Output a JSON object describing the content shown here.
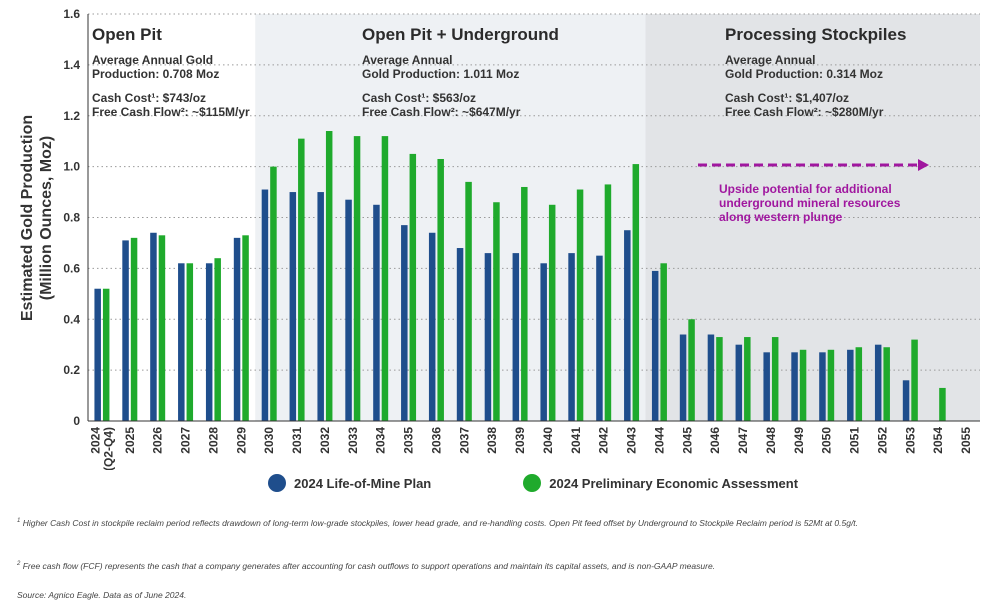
{
  "chart_data": {
    "type": "bar",
    "ylabel_line1": "Estimated Gold Production",
    "ylabel_line2": "(Million Ounces, Moz)",
    "ylim": [
      0,
      1.6
    ],
    "yticks": [
      "0",
      "0.2",
      "0.4",
      "0.6",
      "0.8",
      "1.0",
      "1.2",
      "1.4",
      "1.6"
    ],
    "grid": true,
    "legend_position": "bottom",
    "categories": [
      "2024\n(Q2-Q4)",
      "2025",
      "2026",
      "2027",
      "2028",
      "2029",
      "2030",
      "2031",
      "2032",
      "2033",
      "2034",
      "2035",
      "2036",
      "2037",
      "2038",
      "2039",
      "2040",
      "2041",
      "2042",
      "2043",
      "2044",
      "2045",
      "2046",
      "2047",
      "2048",
      "2049",
      "2050",
      "2051",
      "2052",
      "2053",
      "2054",
      "2055"
    ],
    "series": [
      {
        "name": "2024 Life-of-Mine Plan",
        "color": "#1f4e8c",
        "values": [
          0.52,
          0.71,
          0.74,
          0.62,
          0.62,
          0.72,
          0.91,
          0.9,
          0.9,
          0.87,
          0.85,
          0.77,
          0.74,
          0.68,
          0.66,
          0.66,
          0.62,
          0.66,
          0.65,
          0.75,
          0.59,
          0.34,
          0.34,
          0.3,
          0.27,
          0.27,
          0.27,
          0.28,
          0.3,
          0.16,
          null,
          null
        ]
      },
      {
        "name": "2024 Preliminary Economic Assessment",
        "color": "#1faa2c",
        "values": [
          0.52,
          0.72,
          0.73,
          0.62,
          0.64,
          0.73,
          1.0,
          1.11,
          1.14,
          1.12,
          1.12,
          1.05,
          1.03,
          0.94,
          0.86,
          0.92,
          0.85,
          0.91,
          0.93,
          1.01,
          0.62,
          0.4,
          0.33,
          0.33,
          0.33,
          0.28,
          0.28,
          0.29,
          0.29,
          0.32,
          0.13,
          null
        ]
      }
    ],
    "phases": [
      {
        "title": "Open Pit",
        "lines": [
          "Average Annual Gold",
          "Production: 0.708 Moz",
          "",
          "Cash Cost¹: $743/oz",
          "Free Cash Flow²:  ~$115M/yr"
        ],
        "shade": "#ffffff"
      },
      {
        "title": "Open Pit + Underground",
        "lines": [
          "Average Annual",
          "Gold Production: 1.011 Moz",
          "",
          "Cash Cost¹: $563/oz",
          "Free Cash Flow²: ~$647M/yr"
        ],
        "shade": "#eef1f4"
      },
      {
        "title": "Processing Stockpiles",
        "lines": [
          "Average Annual",
          "Gold Production: 0.314 Moz",
          "",
          "Cash Cost¹: $1,407/oz",
          "Free Cash Flow²: ~$280M/yr"
        ],
        "shade": "#e2e4e7"
      }
    ],
    "annotation": {
      "lines": [
        "Upside potential for additional",
        "underground  mineral resources",
        "along western plunge"
      ],
      "color": "#a0179f"
    }
  },
  "legend": {
    "lom": "2024 Life-of-Mine Plan",
    "pea": "2024 Preliminary Economic Assessment"
  },
  "footnotes": {
    "fn1_mark": "1",
    "fn1": "Higher Cash Cost in stockpile reclaim period reflects drawdown of long-term low-grade stockpiles, lower head grade, and re-handling costs. Open Pit feed offset by Underground to Stockpile Reclaim period is 52Mt at 0.5g/t.",
    "fn2_mark": "2",
    "fn2": "Free cash flow (FCF) represents the cash that a company generates after accounting for cash outflows to support operations and maintain its capital assets, and is non-GAAP measure.",
    "source": "Source: Agnico Eagle. Data as of June 2024."
  }
}
